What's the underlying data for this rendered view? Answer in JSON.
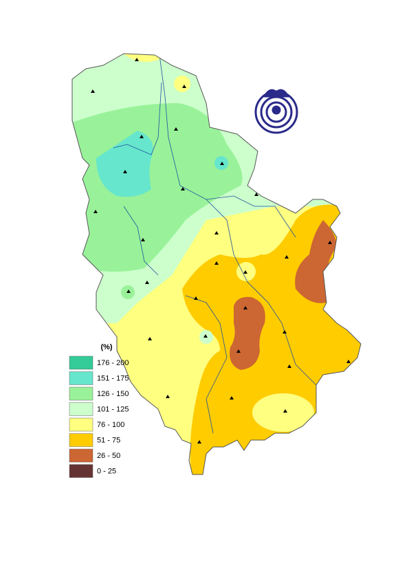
{
  "legend": {
    "title": "(%)",
    "items": [
      {
        "label": "176 - 200",
        "color": "#33cc99"
      },
      {
        "label": "151 - 175",
        "color": "#66e6cc"
      },
      {
        "label": "126 - 150",
        "color": "#99f299"
      },
      {
        "label": "101 - 125",
        "color": "#ccffcc"
      },
      {
        "label": "76 - 100",
        "color": "#ffff80"
      },
      {
        "label": "51 - 75",
        "color": "#ffcc00"
      },
      {
        "label": "26 - 50",
        "color": "#cc6633"
      },
      {
        "label": "0 - 25",
        "color": "#663333"
      }
    ]
  }
}
